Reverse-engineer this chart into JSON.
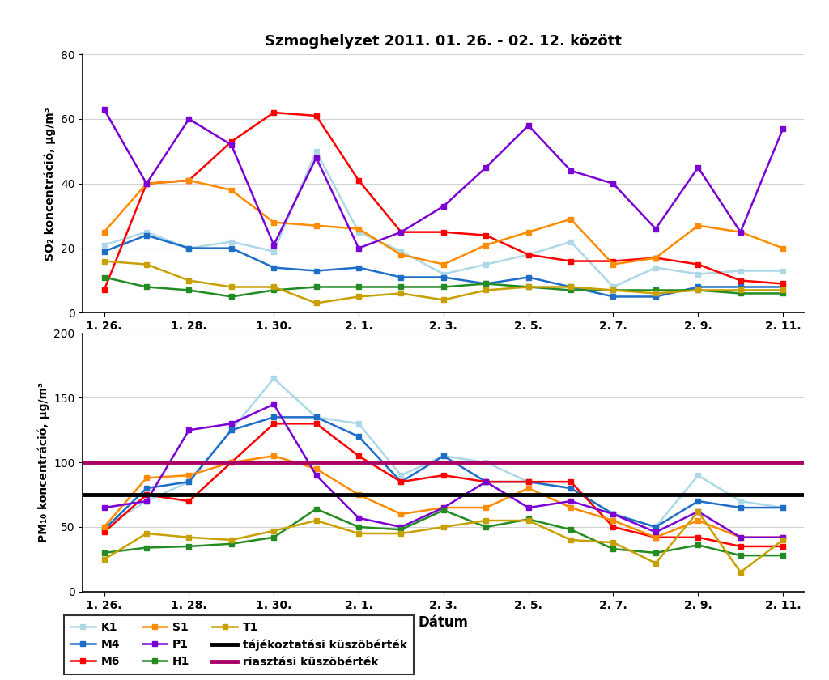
{
  "title": "Szmoghelyzet 2011. 01. 26. - 02. 12. között",
  "xlabel": "Dátum",
  "ylabel_top": "SO₂ koncentráció, μg/m³",
  "ylabel_bottom": "PM₁₀ koncentráció, μg/m³",
  "x_labels": [
    "1. 26.",
    "1. 28.",
    "1. 30.",
    "2. 1.",
    "2. 3.",
    "2. 5.",
    "2. 7.",
    "2. 9.",
    "2. 11."
  ],
  "x_ticks": [
    0,
    2,
    4,
    6,
    8,
    10,
    12,
    14,
    16
  ],
  "series_colors": {
    "K1": "#ADD8E6",
    "M4": "#1E6EC8",
    "M6": "#FF0000",
    "S1": "#FF8C00",
    "P1": "#7B00D4",
    "H1": "#228B22",
    "T1": "#C8A000"
  },
  "so2": {
    "K1": [
      21,
      25,
      20,
      22,
      19,
      50,
      25,
      19,
      12,
      15,
      18,
      22,
      8,
      14,
      12,
      13,
      13
    ],
    "M4": [
      19,
      24,
      20,
      20,
      14,
      13,
      14,
      11,
      11,
      9,
      11,
      8,
      5,
      5,
      8,
      8,
      8
    ],
    "M6": [
      7,
      40,
      41,
      53,
      62,
      61,
      41,
      25,
      25,
      24,
      18,
      16,
      16,
      17,
      15,
      10,
      9
    ],
    "S1": [
      25,
      40,
      41,
      38,
      28,
      27,
      26,
      18,
      15,
      21,
      25,
      29,
      15,
      17,
      27,
      25,
      20
    ],
    "P1": [
      63,
      40,
      60,
      52,
      21,
      48,
      20,
      25,
      33,
      45,
      58,
      44,
      40,
      26,
      45,
      25,
      57
    ],
    "H1": [
      11,
      8,
      7,
      5,
      7,
      8,
      8,
      8,
      8,
      9,
      8,
      7,
      7,
      7,
      7,
      6,
      6
    ],
    "T1": [
      16,
      15,
      10,
      8,
      8,
      3,
      5,
      6,
      4,
      7,
      8,
      8,
      7,
      6,
      7,
      7,
      7
    ]
  },
  "pm10": {
    "K1": [
      50,
      70,
      85,
      125,
      165,
      135,
      130,
      90,
      105,
      100,
      85,
      80,
      60,
      50,
      90,
      70,
      65
    ],
    "M4": [
      48,
      80,
      85,
      125,
      135,
      135,
      120,
      85,
      105,
      85,
      85,
      80,
      60,
      50,
      70,
      65,
      65
    ],
    "M6": [
      46,
      75,
      70,
      100,
      130,
      130,
      105,
      85,
      90,
      85,
      85,
      85,
      50,
      42,
      42,
      35,
      35
    ],
    "S1": [
      50,
      88,
      90,
      100,
      105,
      95,
      75,
      60,
      65,
      65,
      80,
      65,
      55,
      42,
      55,
      42,
      42
    ],
    "P1": [
      65,
      70,
      125,
      130,
      145,
      90,
      57,
      50,
      65,
      85,
      65,
      70,
      60,
      46,
      62,
      42,
      42
    ],
    "H1": [
      30,
      34,
      35,
      37,
      42,
      64,
      50,
      48,
      63,
      50,
      56,
      48,
      33,
      30,
      36,
      28,
      28
    ],
    "T1": [
      25,
      45,
      42,
      40,
      47,
      55,
      45,
      45,
      50,
      55,
      55,
      40,
      38,
      22,
      62,
      15,
      40
    ]
  },
  "threshold_info": 75,
  "threshold_alert": 100,
  "n_points": 17,
  "legend_order": [
    "K1",
    "M4",
    "M6",
    "S1",
    "P1",
    "H1",
    "T1"
  ]
}
